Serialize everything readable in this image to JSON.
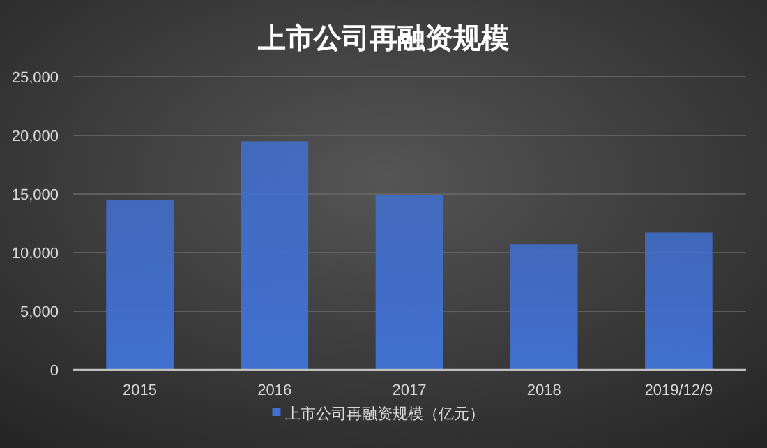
{
  "chart_data": {
    "type": "bar",
    "title": "上市公司再融资规模",
    "categories": [
      "2015",
      "2016",
      "2017",
      "2018",
      "2019/12/9"
    ],
    "series": [
      {
        "name": "上市公司再融资规模（亿元）",
        "color": "#4170d0",
        "values": [
          14500,
          19500,
          14900,
          10700,
          11700
        ]
      }
    ],
    "ylim": [
      0,
      25000
    ],
    "yticks": [
      {
        "value": 0,
        "label": "0"
      },
      {
        "value": 5000,
        "label": "5,000"
      },
      {
        "value": 10000,
        "label": "10,000"
      },
      {
        "value": 15000,
        "label": "15,000"
      },
      {
        "value": 20000,
        "label": "20,000"
      },
      {
        "value": 25000,
        "label": "25,000"
      }
    ],
    "grid": "y",
    "legend": "bottom"
  }
}
